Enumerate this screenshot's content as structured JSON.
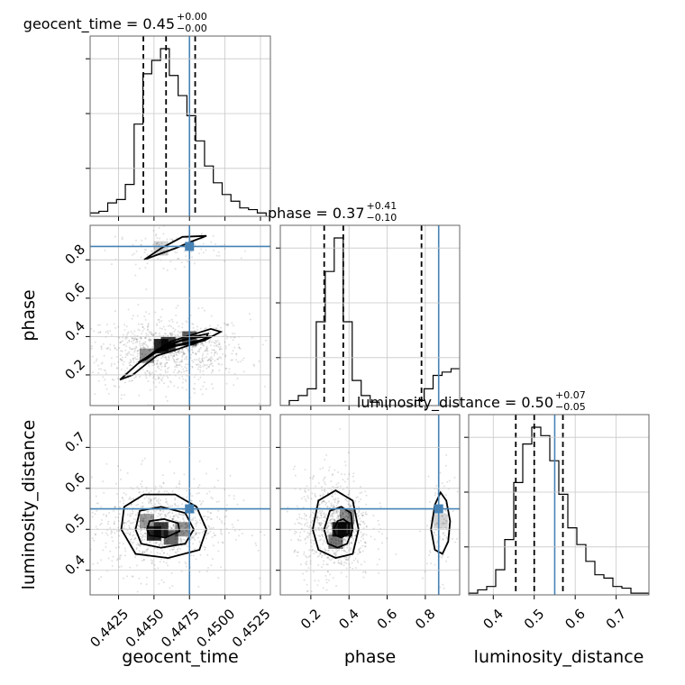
{
  "chart_data": {
    "type": "corner",
    "parameters": [
      "geocent_time",
      "phase",
      "luminosity_distance"
    ],
    "truths": {
      "geocent_time": 0.4475,
      "phase": 0.87,
      "luminosity_distance": 0.55
    },
    "truth_color": "#4682b4",
    "titles": [
      {
        "param": "geocent_time",
        "label": "geocent_time = 0.45",
        "sup": "+0.00",
        "sub": "−0.00"
      },
      {
        "param": "phase",
        "label": "phase = 0.37",
        "sup": "+0.41",
        "sub": "−0.10"
      },
      {
        "param": "luminosity_distance",
        "label": "luminosity_distance = 0.50",
        "sup": "+0.07",
        "sub": "−0.05"
      }
    ],
    "axes": {
      "geocent_time": {
        "range": [
          0.4405,
          0.4532
        ],
        "ticks": [
          0.4425,
          0.445,
          0.4475,
          0.45,
          0.4525
        ],
        "ticklabels": [
          "0.4425",
          "0.4450",
          "0.4475",
          "0.4500",
          "0.4525"
        ]
      },
      "phase": {
        "range": [
          0.04,
          0.98
        ],
        "ticks": [
          0.2,
          0.4,
          0.6,
          0.8
        ],
        "ticklabels": [
          "0.2",
          "0.4",
          "0.6",
          "0.8"
        ]
      },
      "luminosity_distance": {
        "range": [
          0.34,
          0.78
        ],
        "ticks": [
          0.4,
          0.5,
          0.6,
          0.7
        ],
        "ticklabels": [
          "0.4",
          "0.5",
          "0.6",
          "0.7"
        ]
      }
    },
    "axis_labels": {
      "x": [
        "geocent_time",
        "phase",
        "luminosity_distance"
      ],
      "y": [
        "phase",
        "luminosity_distance"
      ]
    },
    "histograms": {
      "geocent_time": {
        "edges": [
          0.4405,
          0.44112,
          0.44174,
          0.44236,
          0.44298,
          0.4436,
          0.44422,
          0.44484,
          0.44546,
          0.44608,
          0.4467,
          0.44732,
          0.44794,
          0.44856,
          0.44918,
          0.4498,
          0.45042,
          0.45104,
          0.45166,
          0.45228,
          0.4529
        ],
        "density": [
          0.02,
          0.03,
          0.08,
          0.1,
          0.19,
          0.55,
          0.85,
          0.93,
          1.0,
          0.84,
          0.72,
          0.6,
          0.45,
          0.3,
          0.2,
          0.13,
          0.09,
          0.05,
          0.04,
          0.02
        ],
        "quantiles": [
          0.44425,
          0.44585,
          0.4479
        ]
      },
      "phase": {
        "edges": [
          0.04,
          0.0871,
          0.1342,
          0.1813,
          0.2284,
          0.2755,
          0.3226,
          0.3697,
          0.4168,
          0.4639,
          0.511,
          0.5581,
          0.6052,
          0.6523,
          0.6994,
          0.7465,
          0.7936,
          0.8407,
          0.8878,
          0.9349,
          0.982
        ],
        "density": [
          0.0,
          0.03,
          0.06,
          0.1,
          0.5,
          0.8,
          1.0,
          0.5,
          0.15,
          0.06,
          0.02,
          0.0,
          0.0,
          0.0,
          0.0,
          0.03,
          0.1,
          0.18,
          0.2,
          0.22
        ],
        "quantiles": [
          0.27,
          0.37,
          0.78
        ]
      },
      "luminosity_distance": {
        "edges": [
          0.34,
          0.362,
          0.384,
          0.406,
          0.428,
          0.45,
          0.472,
          0.494,
          0.516,
          0.538,
          0.56,
          0.582,
          0.604,
          0.626,
          0.648,
          0.67,
          0.692,
          0.714,
          0.736,
          0.758,
          0.78
        ],
        "density": [
          0.01,
          0.03,
          0.05,
          0.15,
          0.33,
          0.67,
          0.9,
          1.0,
          0.95,
          0.8,
          0.6,
          0.4,
          0.3,
          0.2,
          0.12,
          0.1,
          0.05,
          0.04,
          0.01,
          0.01
        ],
        "quantiles": [
          0.455,
          0.5,
          0.57
        ]
      }
    },
    "contours_2d": [
      {
        "x": "geocent_time",
        "y": "phase",
        "levels": [
          [
            [
              0.4426,
              0.175
            ],
            [
              0.4438,
              0.255
            ],
            [
              0.445,
              0.32
            ],
            [
              0.4462,
              0.375
            ],
            [
              0.4475,
              0.405
            ],
            [
              0.449,
              0.44
            ],
            [
              0.4497,
              0.425
            ],
            [
              0.4487,
              0.385
            ],
            [
              0.4465,
              0.33
            ],
            [
              0.4452,
              0.3
            ],
            [
              0.4445,
              0.26
            ],
            [
              0.4435,
              0.2
            ],
            [
              0.4426,
              0.175
            ]
          ],
          [
            [
              0.4439,
              0.265
            ],
            [
              0.445,
              0.315
            ],
            [
              0.4462,
              0.365
            ],
            [
              0.4475,
              0.395
            ],
            [
              0.4488,
              0.415
            ],
            [
              0.4486,
              0.38
            ],
            [
              0.4465,
              0.35
            ],
            [
              0.4452,
              0.32
            ],
            [
              0.4444,
              0.28
            ],
            [
              0.4439,
              0.265
            ]
          ],
          [
            [
              0.4459,
              0.345
            ],
            [
              0.4468,
              0.375
            ],
            [
              0.448,
              0.395
            ],
            [
              0.449,
              0.4
            ],
            [
              0.4482,
              0.38
            ],
            [
              0.4468,
              0.36
            ],
            [
              0.4459,
              0.345
            ]
          ],
          [
            [
              0.4443,
              0.8
            ],
            [
              0.4455,
              0.86
            ],
            [
              0.447,
              0.92
            ],
            [
              0.4487,
              0.925
            ],
            [
              0.4478,
              0.9
            ],
            [
              0.4465,
              0.86
            ],
            [
              0.445,
              0.82
            ],
            [
              0.4443,
              0.8
            ]
          ]
        ]
      },
      {
        "x": "geocent_time",
        "y": "luminosity_distance",
        "levels": [
          [
            [
              0.4427,
              0.5
            ],
            [
              0.4429,
              0.555
            ],
            [
              0.4443,
              0.585
            ],
            [
              0.4465,
              0.585
            ],
            [
              0.448,
              0.555
            ],
            [
              0.4487,
              0.5
            ],
            [
              0.4482,
              0.45
            ],
            [
              0.446,
              0.43
            ],
            [
              0.4437,
              0.44
            ],
            [
              0.4427,
              0.5
            ]
          ],
          [
            [
              0.4437,
              0.5
            ],
            [
              0.444,
              0.545
            ],
            [
              0.4455,
              0.555
            ],
            [
              0.4472,
              0.54
            ],
            [
              0.4478,
              0.5
            ],
            [
              0.4472,
              0.465
            ],
            [
              0.4455,
              0.455
            ],
            [
              0.4441,
              0.465
            ],
            [
              0.4437,
              0.5
            ]
          ],
          [
            [
              0.4445,
              0.5
            ],
            [
              0.4447,
              0.52
            ],
            [
              0.4457,
              0.525
            ],
            [
              0.4467,
              0.515
            ],
            [
              0.4468,
              0.495
            ],
            [
              0.4458,
              0.48
            ],
            [
              0.4447,
              0.485
            ],
            [
              0.4445,
              0.5
            ]
          ]
        ]
      },
      {
        "x": "phase",
        "y": "luminosity_distance",
        "levels": [
          [
            [
              0.21,
              0.5
            ],
            [
              0.24,
              0.57
            ],
            [
              0.33,
              0.595
            ],
            [
              0.42,
              0.57
            ],
            [
              0.45,
              0.5
            ],
            [
              0.42,
              0.44
            ],
            [
              0.33,
              0.43
            ],
            [
              0.24,
              0.45
            ],
            [
              0.21,
              0.5
            ]
          ],
          [
            [
              0.27,
              0.5
            ],
            [
              0.3,
              0.545
            ],
            [
              0.36,
              0.555
            ],
            [
              0.41,
              0.54
            ],
            [
              0.42,
              0.5
            ],
            [
              0.39,
              0.465
            ],
            [
              0.34,
              0.455
            ],
            [
              0.29,
              0.465
            ],
            [
              0.27,
              0.5
            ]
          ],
          [
            [
              0.32,
              0.5
            ],
            [
              0.34,
              0.52
            ],
            [
              0.37,
              0.525
            ],
            [
              0.4,
              0.515
            ],
            [
              0.4,
              0.49
            ],
            [
              0.36,
              0.48
            ],
            [
              0.33,
              0.485
            ],
            [
              0.32,
              0.5
            ]
          ],
          [
            [
              0.85,
              0.45
            ],
            [
              0.83,
              0.5
            ],
            [
              0.85,
              0.56
            ],
            [
              0.88,
              0.59
            ],
            [
              0.91,
              0.57
            ],
            [
              0.93,
              0.52
            ],
            [
              0.92,
              0.47
            ],
            [
              0.89,
              0.44
            ],
            [
              0.85,
              0.45
            ]
          ]
        ]
      }
    ],
    "density_blobs": [
      {
        "x": "geocent_time",
        "y": "phase",
        "points": [
          [
            0.4455,
            0.35,
            1.0
          ],
          [
            0.446,
            0.36,
            0.9
          ],
          [
            0.4475,
            0.39,
            0.75
          ],
          [
            0.4445,
            0.3,
            0.5
          ],
          [
            0.4455,
            0.86,
            0.2
          ]
        ]
      },
      {
        "x": "geocent_time",
        "y": "luminosity_distance",
        "points": [
          [
            0.445,
            0.49,
            1.0
          ],
          [
            0.4455,
            0.5,
            0.9
          ],
          [
            0.4462,
            0.48,
            0.7
          ],
          [
            0.447,
            0.5,
            0.5
          ],
          [
            0.4445,
            0.52,
            0.45
          ]
        ]
      },
      {
        "x": "phase",
        "y": "luminosity_distance",
        "points": [
          [
            0.35,
            0.5,
            1.0
          ],
          [
            0.38,
            0.5,
            0.9
          ],
          [
            0.33,
            0.47,
            0.6
          ],
          [
            0.39,
            0.53,
            0.5
          ],
          [
            0.88,
            0.52,
            0.2
          ]
        ]
      }
    ]
  }
}
